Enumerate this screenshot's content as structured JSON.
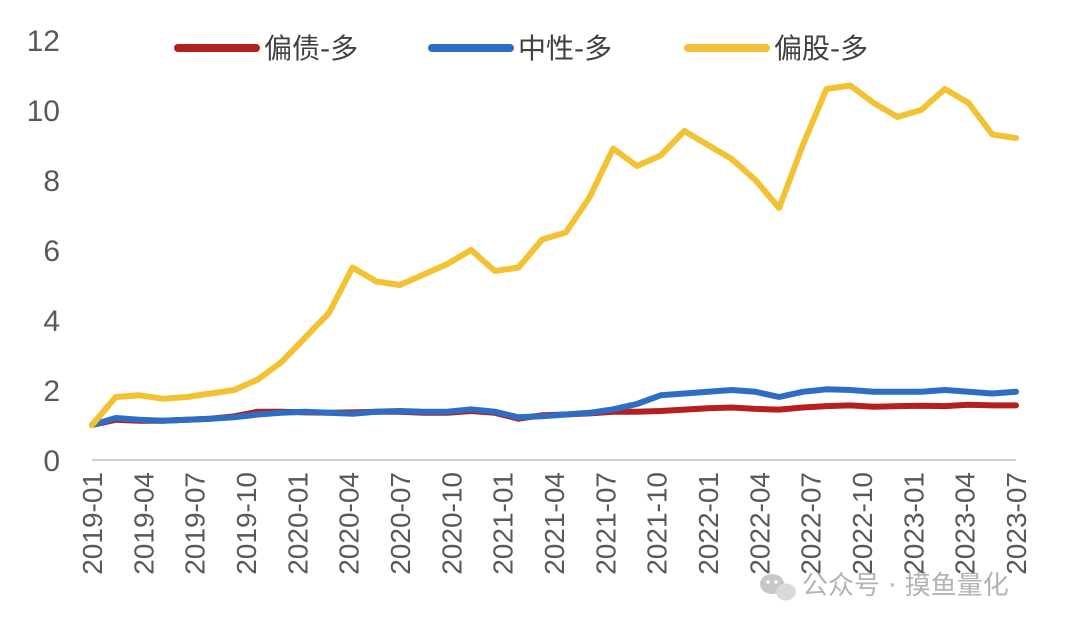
{
  "chart_data": {
    "type": "line",
    "x_ticks": [
      "2019-01",
      "2019-04",
      "2019-07",
      "2019-10",
      "2020-01",
      "2020-04",
      "2020-07",
      "2020-10",
      "2021-01",
      "2021-04",
      "2021-07",
      "2021-10",
      "2022-01",
      "2022-04",
      "2022-07",
      "2022-10",
      "2023-01",
      "2023-04",
      "2023-07"
    ],
    "y_ticks": [
      "0",
      "2",
      "4",
      "6",
      "8",
      "10",
      "12"
    ],
    "ylim": [
      0,
      12
    ],
    "grid": false,
    "legend_position": "top",
    "series": [
      {
        "name": "偏债-多",
        "color": "#B41F1F",
        "values": [
          1.0,
          1.15,
          1.12,
          1.12,
          1.15,
          1.18,
          1.25,
          1.38,
          1.38,
          1.36,
          1.35,
          1.36,
          1.38,
          1.38,
          1.35,
          1.35,
          1.4,
          1.35,
          1.18,
          1.28,
          1.3,
          1.33,
          1.38,
          1.38,
          1.4,
          1.44,
          1.48,
          1.5,
          1.46,
          1.44,
          1.5,
          1.54,
          1.56,
          1.52,
          1.54,
          1.55,
          1.54,
          1.58,
          1.56,
          1.56
        ]
      },
      {
        "name": "中性-多",
        "color": "#2E6DC4",
        "values": [
          1.0,
          1.2,
          1.15,
          1.12,
          1.15,
          1.18,
          1.22,
          1.3,
          1.35,
          1.38,
          1.35,
          1.32,
          1.38,
          1.4,
          1.38,
          1.38,
          1.45,
          1.38,
          1.22,
          1.25,
          1.3,
          1.35,
          1.45,
          1.6,
          1.85,
          1.9,
          1.95,
          2.0,
          1.95,
          1.8,
          1.95,
          2.02,
          2.0,
          1.95,
          1.95,
          1.95,
          2.0,
          1.95,
          1.9,
          1.95
        ]
      },
      {
        "name": "偏股-多",
        "color": "#F2C232",
        "values": [
          1.0,
          1.8,
          1.85,
          1.75,
          1.8,
          1.9,
          2.0,
          2.3,
          2.8,
          3.5,
          4.2,
          5.5,
          5.1,
          5.0,
          5.3,
          5.6,
          6.0,
          5.4,
          5.5,
          6.3,
          6.5,
          7.5,
          8.9,
          8.4,
          8.7,
          9.4,
          9.0,
          8.6,
          8.0,
          7.2,
          9.0,
          10.6,
          10.7,
          10.2,
          9.8,
          10.0,
          10.6,
          10.2,
          9.3,
          9.2
        ]
      }
    ]
  },
  "watermark": {
    "icon": "wechat-icon",
    "text": "公众号 · 摸鱼量化"
  }
}
